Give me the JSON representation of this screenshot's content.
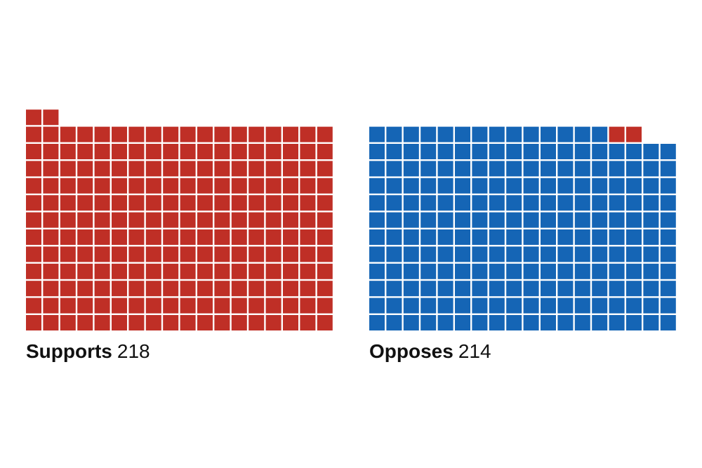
{
  "colors": {
    "supports": "#bf2f26",
    "opposes": "#1565b5",
    "background": "#ffffff"
  },
  "chart_data": {
    "type": "waffle",
    "title": "",
    "groups": [
      {
        "label": "Supports",
        "count_label": "218",
        "total": 218,
        "columns": 18,
        "cells": [
          {
            "party": "supports",
            "count": 218
          }
        ]
      },
      {
        "label": "Opposes",
        "count_label": "214",
        "total": 214,
        "columns": 18,
        "cells": [
          {
            "party": "opposes",
            "count": 212
          },
          {
            "party": "supports",
            "count": 2
          }
        ]
      }
    ]
  }
}
